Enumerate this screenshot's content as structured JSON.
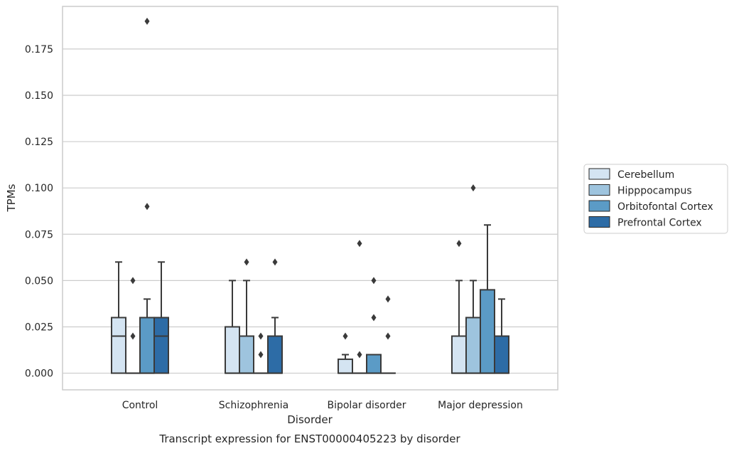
{
  "chart_data": {
    "type": "box",
    "caption": "Transcript expression for ENST00000405223 by disorder",
    "xlabel": "Disorder",
    "ylabel": "TPMs",
    "ylim": [
      -0.009,
      0.198
    ],
    "yticks": [
      "0.000",
      "0.025",
      "0.050",
      "0.075",
      "0.100",
      "0.125",
      "0.150",
      "0.175"
    ],
    "grid": "horizontal",
    "legend_position": "right",
    "categories": [
      "Control",
      "Schizophrenia",
      "Bipolar disorder",
      "Major depression"
    ],
    "series": [
      {
        "name": "Cerebellum",
        "color": "#d4e4f2",
        "boxes": [
          {
            "q1": 0,
            "median": 0.02,
            "q3": 0.03,
            "whisker_low": 0,
            "whisker_high": 0.06,
            "outliers": []
          },
          {
            "q1": 0,
            "median": 0.0,
            "q3": 0.025,
            "whisker_low": 0,
            "whisker_high": 0.05,
            "outliers": []
          },
          {
            "q1": 0,
            "median": 0.0,
            "q3": 0.0075,
            "whisker_low": 0,
            "whisker_high": 0.01,
            "outliers": [
              0.02
            ]
          },
          {
            "q1": 0,
            "median": 0.0,
            "q3": 0.02,
            "whisker_low": 0,
            "whisker_high": 0.05,
            "outliers": [
              0.07
            ]
          }
        ]
      },
      {
        "name": "Hipppocampus",
        "color": "#9ec4de",
        "boxes": [
          {
            "q1": 0,
            "median": 0,
            "q3": 0,
            "whisker_low": 0,
            "whisker_high": 0,
            "outliers": [
              0.02,
              0.05
            ]
          },
          {
            "q1": 0,
            "median": 0.0,
            "q3": 0.02,
            "whisker_low": 0,
            "whisker_high": 0.05,
            "outliers": [
              0.06
            ]
          },
          {
            "q1": 0,
            "median": 0,
            "q3": 0,
            "whisker_low": 0,
            "whisker_high": 0,
            "outliers": [
              0.01,
              0.07
            ]
          },
          {
            "q1": 0,
            "median": 0.0,
            "q3": 0.03,
            "whisker_low": 0,
            "whisker_high": 0.05,
            "outliers": [
              0.1
            ]
          }
        ]
      },
      {
        "name": "Orbitofontal Cortex",
        "color": "#5b9bc6",
        "boxes": [
          {
            "q1": 0,
            "median": 0.0,
            "q3": 0.03,
            "whisker_low": 0,
            "whisker_high": 0.04,
            "outliers": [
              0.09,
              0.19
            ]
          },
          {
            "q1": 0,
            "median": 0,
            "q3": 0,
            "whisker_low": 0,
            "whisker_high": 0,
            "outliers": [
              0.01,
              0.02
            ]
          },
          {
            "q1": 0,
            "median": 0.0,
            "q3": 0.01,
            "whisker_low": 0,
            "whisker_high": 0.01,
            "outliers": [
              0.03,
              0.05
            ]
          },
          {
            "q1": 0,
            "median": 0.0,
            "q3": 0.045,
            "whisker_low": 0,
            "whisker_high": 0.08,
            "outliers": []
          }
        ]
      },
      {
        "name": "Prefrontal Cortex",
        "color": "#2d6ca6",
        "boxes": [
          {
            "q1": 0,
            "median": 0.02,
            "q3": 0.03,
            "whisker_low": 0,
            "whisker_high": 0.06,
            "outliers": []
          },
          {
            "q1": 0,
            "median": 0.0,
            "q3": 0.02,
            "whisker_low": 0,
            "whisker_high": 0.03,
            "outliers": [
              0.06
            ]
          },
          {
            "q1": 0,
            "median": 0,
            "q3": 0,
            "whisker_low": 0,
            "whisker_high": 0,
            "outliers": [
              0.02,
              0.04
            ]
          },
          {
            "q1": 0,
            "median": 0.0,
            "q3": 0.02,
            "whisker_low": 0,
            "whisker_high": 0.04,
            "outliers": []
          }
        ]
      }
    ]
  }
}
